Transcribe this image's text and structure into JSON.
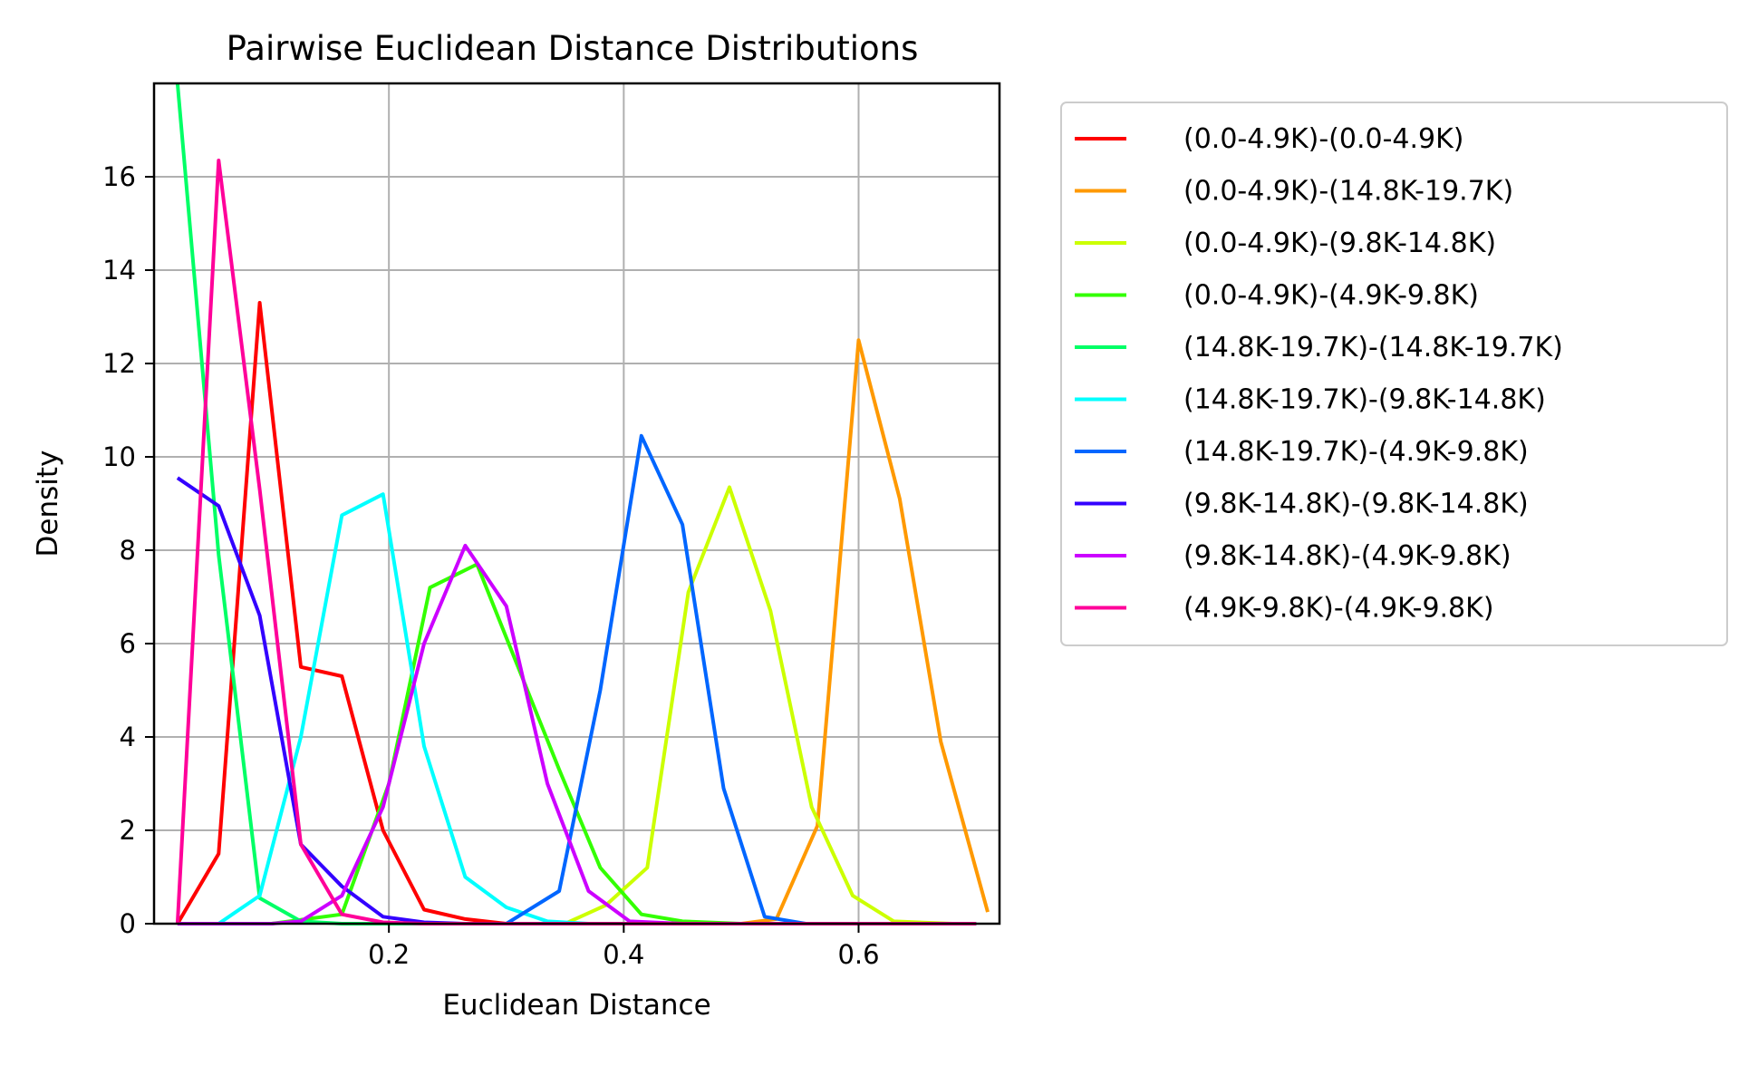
{
  "chart_data": {
    "type": "line",
    "title": "Pairwise Euclidean Distance Distributions",
    "xlabel": "Euclidean Distance",
    "ylabel": "Density",
    "xlim": [
      0.0,
      0.72
    ],
    "ylim": [
      0,
      18.0
    ],
    "xticks": [
      0.2,
      0.4,
      0.6
    ],
    "xtick_labels": [
      "0.2",
      "0.4",
      "0.6"
    ],
    "yticks": [
      0,
      2,
      4,
      6,
      8,
      10,
      12,
      14,
      16
    ],
    "ytick_labels": [
      "0",
      "2",
      "4",
      "6",
      "8",
      "10",
      "12",
      "14",
      "16"
    ],
    "grid": true,
    "legend_position": "outside-right-top",
    "series": [
      {
        "name": "(0.0-4.9K)-(0.0-4.9K)",
        "color": "#ff0000",
        "points": [
          [
            0.02,
            0.0
          ],
          [
            0.055,
            1.5
          ],
          [
            0.09,
            13.3
          ],
          [
            0.125,
            5.5
          ],
          [
            0.16,
            5.3
          ],
          [
            0.195,
            2.0
          ],
          [
            0.23,
            0.3
          ],
          [
            0.265,
            0.1
          ],
          [
            0.3,
            0.0
          ],
          [
            0.35,
            0.0
          ],
          [
            0.42,
            0.0
          ],
          [
            0.5,
            0.0
          ],
          [
            0.6,
            0.0
          ],
          [
            0.7,
            0.0
          ]
        ]
      },
      {
        "name": "(0.0-4.9K)-(14.8K-19.7K)",
        "color": "#ff9900",
        "points": [
          [
            0.5,
            0.0
          ],
          [
            0.53,
            0.1
          ],
          [
            0.565,
            2.1
          ],
          [
            0.6,
            12.5
          ],
          [
            0.635,
            9.1
          ],
          [
            0.67,
            3.9
          ],
          [
            0.71,
            0.25
          ]
        ]
      },
      {
        "name": "(0.0-4.9K)-(9.8K-14.8K)",
        "color": "#ccff00",
        "points": [
          [
            0.35,
            0.0
          ],
          [
            0.385,
            0.4
          ],
          [
            0.42,
            1.2
          ],
          [
            0.455,
            7.1
          ],
          [
            0.49,
            9.35
          ],
          [
            0.525,
            6.7
          ],
          [
            0.56,
            2.5
          ],
          [
            0.595,
            0.6
          ],
          [
            0.63,
            0.05
          ],
          [
            0.68,
            0.0
          ],
          [
            0.7,
            0.0
          ]
        ]
      },
      {
        "name": "(0.0-4.9K)-(4.9K-9.8K)",
        "color": "#33ff00",
        "points": [
          [
            0.02,
            0.0
          ],
          [
            0.1,
            0.0
          ],
          [
            0.16,
            0.2
          ],
          [
            0.2,
            3.0
          ],
          [
            0.235,
            7.2
          ],
          [
            0.275,
            7.7
          ],
          [
            0.31,
            5.5
          ],
          [
            0.345,
            3.3
          ],
          [
            0.38,
            1.2
          ],
          [
            0.415,
            0.2
          ],
          [
            0.45,
            0.05
          ],
          [
            0.5,
            0.0
          ],
          [
            0.6,
            0.0
          ],
          [
            0.7,
            0.0
          ]
        ]
      },
      {
        "name": "(14.8K-19.7K)-(14.8K-19.7K)",
        "color": "#00ff66",
        "points": [
          [
            0.02,
            18.0
          ],
          [
            0.055,
            7.9
          ],
          [
            0.09,
            0.55
          ],
          [
            0.125,
            0.05
          ],
          [
            0.16,
            0.0
          ],
          [
            0.2,
            0.0
          ],
          [
            0.3,
            0.0
          ],
          [
            0.4,
            0.0
          ],
          [
            0.5,
            0.0
          ],
          [
            0.6,
            0.0
          ],
          [
            0.7,
            0.0
          ]
        ]
      },
      {
        "name": "(14.8K-19.7K)-(9.8K-14.8K)",
        "color": "#00ffff",
        "points": [
          [
            0.055,
            0.0
          ],
          [
            0.09,
            0.6
          ],
          [
            0.125,
            4.0
          ],
          [
            0.16,
            8.75
          ],
          [
            0.195,
            9.2
          ],
          [
            0.23,
            3.8
          ],
          [
            0.265,
            1.0
          ],
          [
            0.3,
            0.35
          ],
          [
            0.335,
            0.05
          ],
          [
            0.37,
            0.0
          ],
          [
            0.45,
            0.0
          ],
          [
            0.55,
            0.0
          ],
          [
            0.7,
            0.0
          ]
        ]
      },
      {
        "name": "(14.8K-19.7K)-(4.9K-9.8K)",
        "color": "#0066ff",
        "points": [
          [
            0.3,
            0.0
          ],
          [
            0.345,
            0.7
          ],
          [
            0.38,
            5.0
          ],
          [
            0.415,
            10.45
          ],
          [
            0.45,
            8.55
          ],
          [
            0.485,
            2.9
          ],
          [
            0.52,
            0.15
          ],
          [
            0.555,
            0.0
          ],
          [
            0.6,
            0.0
          ],
          [
            0.7,
            0.0
          ]
        ]
      },
      {
        "name": "(9.8K-14.8K)-(9.8K-14.8K)",
        "color": "#3300ff",
        "points": [
          [
            0.02,
            9.55
          ],
          [
            0.055,
            8.95
          ],
          [
            0.09,
            6.6
          ],
          [
            0.125,
            1.7
          ],
          [
            0.16,
            0.8
          ],
          [
            0.195,
            0.15
          ],
          [
            0.23,
            0.03
          ],
          [
            0.265,
            0.0
          ],
          [
            0.3,
            0.0
          ],
          [
            0.4,
            0.0
          ],
          [
            0.5,
            0.0
          ],
          [
            0.6,
            0.0
          ],
          [
            0.7,
            0.0
          ]
        ]
      },
      {
        "name": "(9.8K-14.8K)-(4.9K-9.8K)",
        "color": "#cc00ff",
        "points": [
          [
            0.02,
            0.0
          ],
          [
            0.1,
            0.0
          ],
          [
            0.125,
            0.05
          ],
          [
            0.16,
            0.6
          ],
          [
            0.195,
            2.5
          ],
          [
            0.23,
            6.0
          ],
          [
            0.265,
            8.1
          ],
          [
            0.3,
            6.8
          ],
          [
            0.335,
            3.0
          ],
          [
            0.37,
            0.7
          ],
          [
            0.405,
            0.05
          ],
          [
            0.45,
            0.0
          ],
          [
            0.55,
            0.0
          ],
          [
            0.7,
            0.0
          ]
        ]
      },
      {
        "name": "(4.9K-9.8K)-(4.9K-9.8K)",
        "color": "#ff0099",
        "points": [
          [
            0.02,
            0.0
          ],
          [
            0.055,
            16.35
          ],
          [
            0.09,
            9.3
          ],
          [
            0.125,
            1.7
          ],
          [
            0.16,
            0.2
          ],
          [
            0.195,
            0.03
          ],
          [
            0.23,
            0.0
          ],
          [
            0.3,
            0.0
          ],
          [
            0.4,
            0.0
          ],
          [
            0.5,
            0.0
          ],
          [
            0.6,
            0.0
          ],
          [
            0.7,
            0.0
          ]
        ]
      }
    ]
  }
}
